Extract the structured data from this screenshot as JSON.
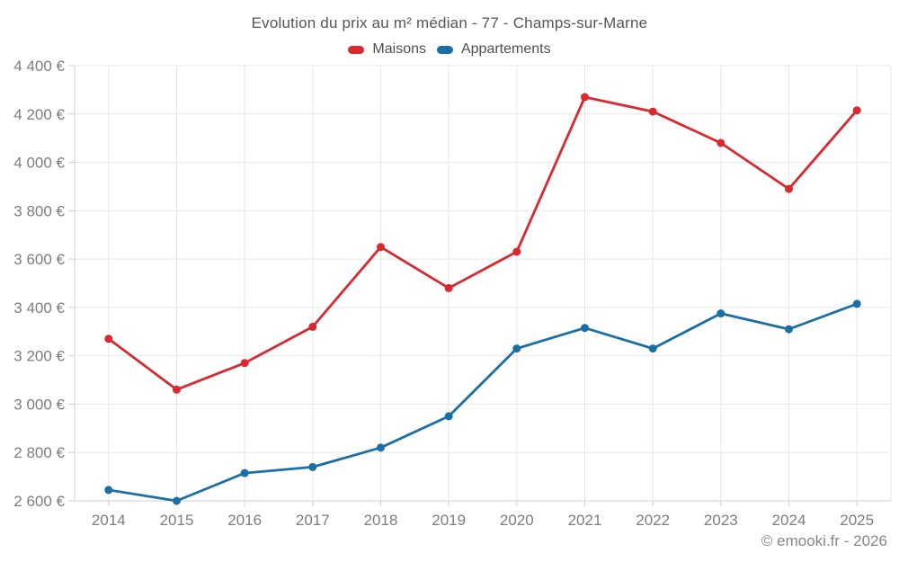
{
  "footer": {
    "credit": "© emooki.fr - 2026"
  },
  "chart_data": {
    "type": "line",
    "title": "Evolution du prix au m² médian - 77 - Champs-sur-Marne",
    "xlabel": "",
    "ylabel": "",
    "x": [
      2014,
      2015,
      2016,
      2017,
      2018,
      2019,
      2020,
      2021,
      2022,
      2023,
      2024,
      2025
    ],
    "series": [
      {
        "name": "Maisons",
        "color": "#d9282e",
        "values": [
          3270,
          3060,
          3170,
          3320,
          3650,
          3480,
          3630,
          4270,
          4210,
          4080,
          3890,
          4215
        ]
      },
      {
        "name": "Appartements",
        "color": "#1b6fa4",
        "values": [
          2645,
          2600,
          2715,
          2740,
          2820,
          2950,
          3230,
          3315,
          3230,
          3375,
          3310,
          3415
        ]
      }
    ],
    "ylim": [
      2600,
      4400
    ],
    "ytick_step": 200,
    "ytick_suffix": " €",
    "grid": true,
    "legend_position": "top",
    "colors": {
      "grid": "#e7e7e7",
      "axis": "#cfcfcf",
      "tick_label": "#7b7e81",
      "title_text": "#53575a"
    }
  }
}
